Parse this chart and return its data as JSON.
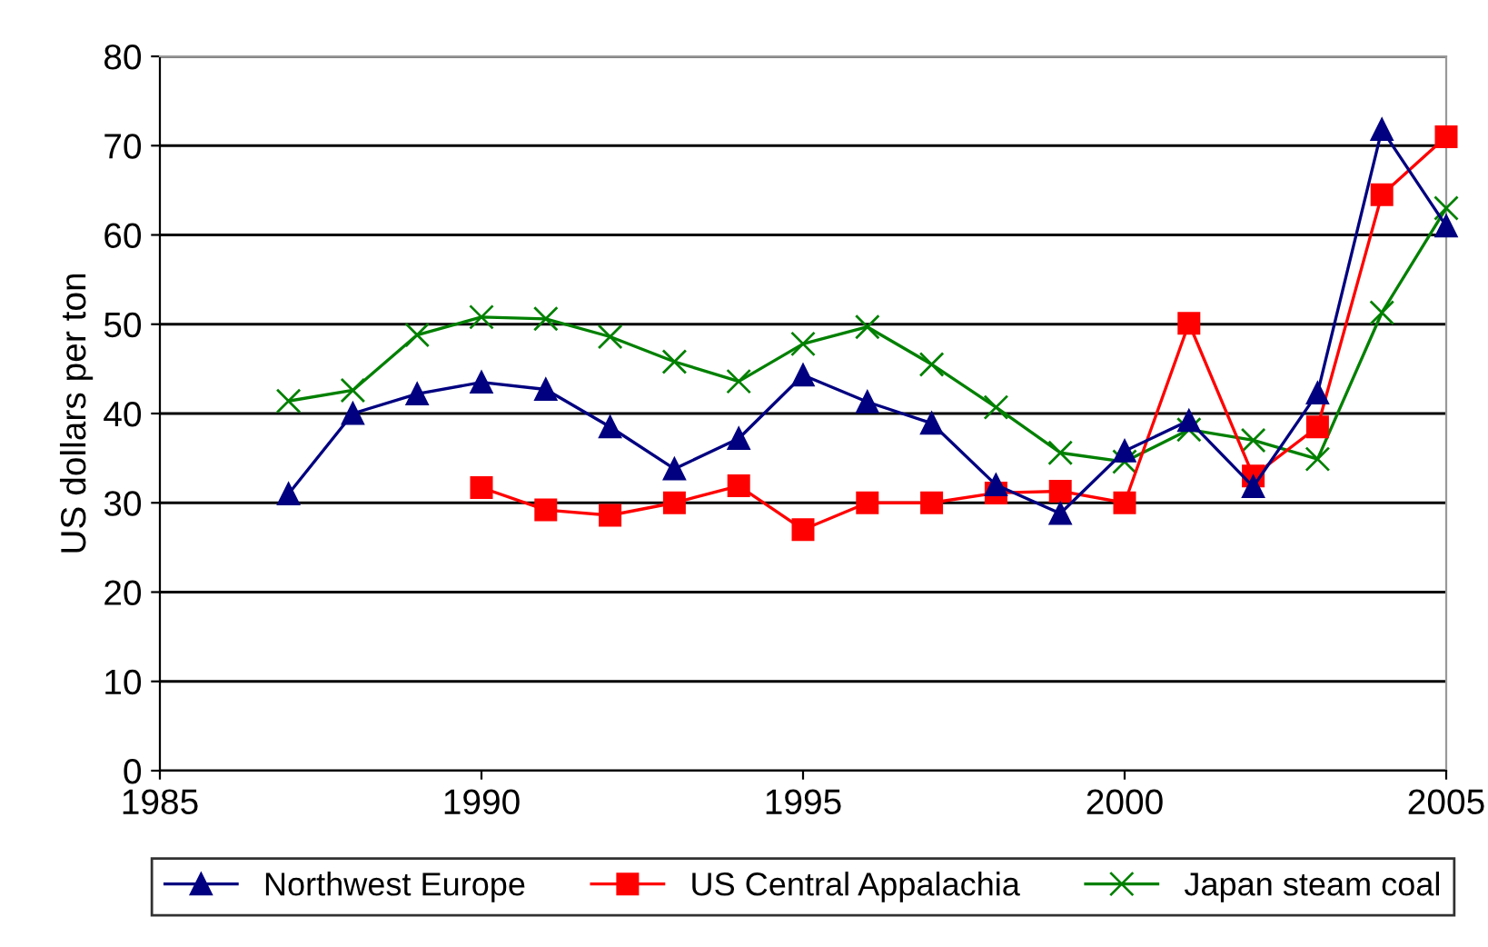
{
  "chart_data": {
    "type": "line",
    "ylabel": "US dollars per ton",
    "xlim": [
      1985,
      2005
    ],
    "xticks": [
      1985,
      1990,
      1995,
      2000,
      2005
    ],
    "ylim": [
      0,
      80
    ],
    "yticks": [
      0,
      10,
      20,
      30,
      40,
      50,
      60,
      70,
      80
    ],
    "grid": "y",
    "legend": "bottom",
    "series": [
      {
        "name": "Northwest Europe",
        "color": "#000080",
        "marker": "triangle",
        "x": [
          1987,
          1988,
          1989,
          1990,
          1991,
          1992,
          1993,
          1994,
          1995,
          1996,
          1997,
          1998,
          1999,
          2000,
          2001,
          2002,
          2003,
          2004,
          2005
        ],
        "values": [
          31,
          40,
          42.2,
          43.5,
          42.7,
          38.5,
          33.8,
          37.2,
          44.3,
          41.3,
          38.9,
          32,
          28.8,
          35.8,
          39.2,
          31.8,
          42.3,
          71.8,
          61
        ]
      },
      {
        "name": "US Central Appalachia",
        "color": "#ff0000",
        "marker": "square",
        "x": [
          1990,
          1991,
          1992,
          1993,
          1994,
          1995,
          1996,
          1997,
          1998,
          1999,
          2000,
          2001,
          2002,
          2003,
          2004,
          2005
        ],
        "values": [
          31.7,
          29.2,
          28.6,
          30,
          31.9,
          27,
          30,
          30,
          31.1,
          31.3,
          30,
          50.1,
          33,
          38.5,
          64.5,
          71
        ]
      },
      {
        "name": "Japan steam coal",
        "color": "#008000",
        "marker": "cross",
        "x": [
          1987,
          1988,
          1989,
          1990,
          1991,
          1992,
          1993,
          1994,
          1995,
          1996,
          1997,
          1998,
          1999,
          2000,
          2001,
          2002,
          2003,
          2004,
          2005
        ],
        "values": [
          41.4,
          42.6,
          48.8,
          50.8,
          50.6,
          48.6,
          45.8,
          43.6,
          47.8,
          49.7,
          45.5,
          40.7,
          35.6,
          34.6,
          38.2,
          37,
          34.9,
          51.3,
          63
        ]
      }
    ]
  }
}
